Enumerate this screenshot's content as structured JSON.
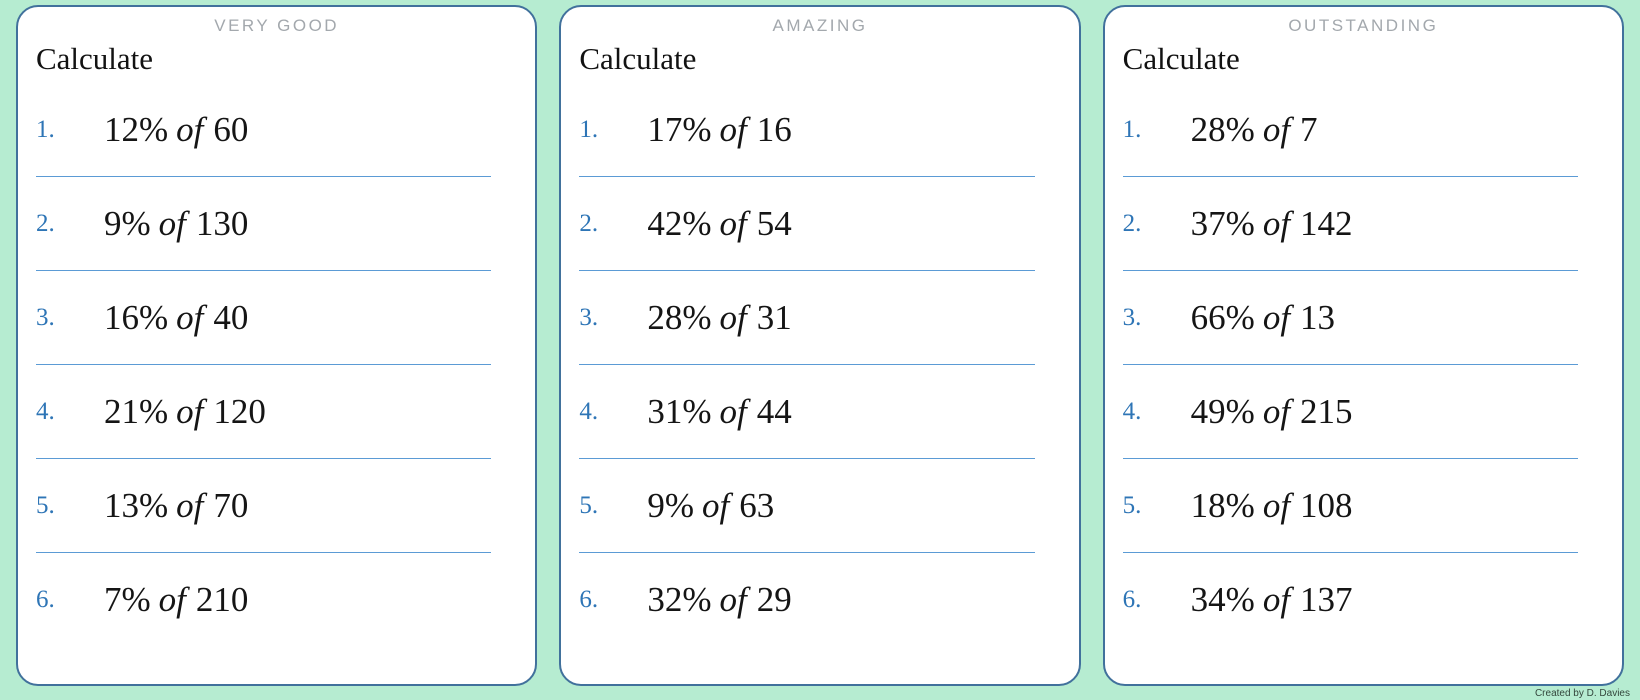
{
  "page": {
    "background": "#b6ecd1",
    "credit": "Created by D. Davies"
  },
  "colors": {
    "card_border": "#41719c",
    "divider_line": "#5b9bd5",
    "number_blue": "#2e75b6",
    "title_gray": "#a3a8ad",
    "text_black": "#151515"
  },
  "cards": [
    {
      "title": "VERY GOOD",
      "heading": "Calculate",
      "problems": [
        {
          "n": "1.",
          "percent": "12%",
          "of": "of",
          "value": "60"
        },
        {
          "n": "2.",
          "percent": "9%",
          "of": "of",
          "value": "130"
        },
        {
          "n": "3.",
          "percent": "16%",
          "of": "of",
          "value": "40"
        },
        {
          "n": "4.",
          "percent": "21%",
          "of": "of",
          "value": "120"
        },
        {
          "n": "5.",
          "percent": "13%",
          "of": "of",
          "value": "70"
        },
        {
          "n": "6.",
          "percent": "7%",
          "of": "of",
          "value": "210"
        }
      ]
    },
    {
      "title": "AMAZING",
      "heading": "Calculate",
      "problems": [
        {
          "n": "1.",
          "percent": "17%",
          "of": "of",
          "value": "16"
        },
        {
          "n": "2.",
          "percent": "42%",
          "of": "of",
          "value": "54"
        },
        {
          "n": "3.",
          "percent": "28%",
          "of": "of",
          "value": "31"
        },
        {
          "n": "4.",
          "percent": "31%",
          "of": "of",
          "value": "44"
        },
        {
          "n": "5.",
          "percent": "9%",
          "of": "of",
          "value": "63"
        },
        {
          "n": "6.",
          "percent": "32%",
          "of": "of",
          "value": "29"
        }
      ]
    },
    {
      "title": "OUTSTANDING",
      "heading": "Calculate",
      "problems": [
        {
          "n": "1.",
          "percent": "28%",
          "of": "of",
          "value": "7"
        },
        {
          "n": "2.",
          "percent": "37%",
          "of": "of",
          "value": "142"
        },
        {
          "n": "3.",
          "percent": "66%",
          "of": "of",
          "value": "13"
        },
        {
          "n": "4.",
          "percent": "49%",
          "of": "of",
          "value": "215"
        },
        {
          "n": "5.",
          "percent": "18%",
          "of": "of",
          "value": "108"
        },
        {
          "n": "6.",
          "percent": "34%",
          "of": "of",
          "value": "137"
        }
      ]
    }
  ]
}
